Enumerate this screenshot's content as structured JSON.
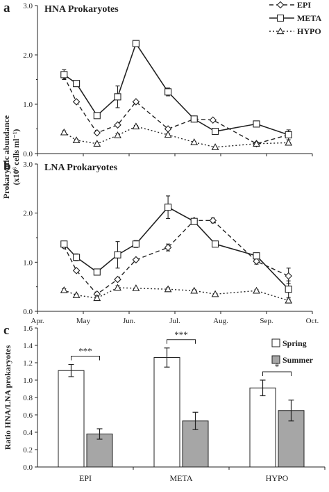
{
  "panel_letters": [
    "a",
    "b",
    "c"
  ],
  "shared_ylabel": {
    "line1": "Prokaryotic abundance",
    "line2": "(x10⁶ cells ml⁻¹)"
  },
  "time_axis": {
    "ticks": [
      "Apr.",
      "May",
      "Jun.",
      "Jul.",
      "Aug.",
      "Sep.",
      "Oct."
    ],
    "range_months": [
      0,
      6
    ]
  },
  "chart_data": [
    {
      "type": "line",
      "panel": "a",
      "title": "HNA Prokaryotes",
      "ylabel": "Prokaryotic abundance (x10⁶ cells ml⁻¹)",
      "ylim": [
        0,
        3
      ],
      "yticks": [
        "0.0",
        "1.0",
        "2.0",
        "3.0"
      ],
      "legend_position": "top-right",
      "series": [
        {
          "name": "EPI",
          "marker": "diamond",
          "dash": "dashed",
          "points": [
            [
              0.58,
              1.57,
              0
            ],
            [
              0.85,
              1.05,
              0
            ],
            [
              1.3,
              0.42,
              0
            ],
            [
              1.75,
              0.58,
              0
            ],
            [
              2.15,
              1.05,
              0
            ],
            [
              2.85,
              0.5,
              0
            ],
            [
              3.42,
              0.7,
              0
            ],
            [
              3.83,
              0.68,
              0
            ],
            [
              4.78,
              0.2,
              0
            ],
            [
              5.48,
              0.38,
              0
            ]
          ]
        },
        {
          "name": "META",
          "marker": "square",
          "dash": "solid",
          "points": [
            [
              0.58,
              1.6,
              0.1
            ],
            [
              0.85,
              1.42,
              0.05
            ],
            [
              1.3,
              0.77,
              0.03
            ],
            [
              1.75,
              1.15,
              0.22
            ],
            [
              2.15,
              2.23,
              0
            ],
            [
              2.85,
              1.25,
              0.08
            ],
            [
              3.42,
              0.7,
              0.04
            ],
            [
              3.88,
              0.45,
              0.02
            ],
            [
              4.78,
              0.6,
              0.04
            ],
            [
              5.48,
              0.38,
              0.1
            ]
          ]
        },
        {
          "name": "HYPO",
          "marker": "triangle",
          "dash": "dotted",
          "points": [
            [
              0.58,
              0.43,
              0.03
            ],
            [
              0.85,
              0.27,
              0.02
            ],
            [
              1.3,
              0.2,
              0.02
            ],
            [
              1.75,
              0.37,
              0.03
            ],
            [
              2.15,
              0.55,
              0.02
            ],
            [
              2.85,
              0.38,
              0.02
            ],
            [
              3.42,
              0.23,
              0.01
            ],
            [
              3.88,
              0.13,
              0.01
            ],
            [
              4.78,
              0.2,
              0.01
            ],
            [
              5.48,
              0.22,
              0.01
            ]
          ]
        }
      ]
    },
    {
      "type": "line",
      "panel": "b",
      "title": "LNA Prokaryotes",
      "ylabel": "Prokaryotic abundance (x10⁶ cells ml⁻¹)",
      "ylim": [
        0,
        3
      ],
      "yticks": [
        "0.0",
        "1.0",
        "2.0",
        "3.0"
      ],
      "series": [
        {
          "name": "EPI",
          "marker": "diamond",
          "dash": "dashed",
          "points": [
            [
              0.58,
              1.33,
              0.04
            ],
            [
              0.85,
              0.83,
              0.03
            ],
            [
              1.3,
              0.35,
              0.04
            ],
            [
              1.75,
              0.65,
              0.03
            ],
            [
              2.15,
              1.05,
              0.03
            ],
            [
              2.85,
              1.3,
              0.07
            ],
            [
              3.42,
              1.85,
              0
            ],
            [
              3.83,
              1.85,
              0.05
            ],
            [
              4.78,
              1.02,
              0.06
            ],
            [
              5.48,
              0.72,
              0.16
            ]
          ]
        },
        {
          "name": "META",
          "marker": "square",
          "dash": "solid",
          "points": [
            [
              0.58,
              1.37,
              0.04
            ],
            [
              0.85,
              1.1,
              0.07
            ],
            [
              1.3,
              0.8,
              0
            ],
            [
              1.75,
              1.15,
              0.27
            ],
            [
              2.15,
              1.37,
              0.07
            ],
            [
              2.85,
              2.12,
              0.23
            ],
            [
              3.42,
              1.83,
              0
            ],
            [
              3.88,
              1.37,
              0.04
            ],
            [
              4.78,
              1.13,
              0.05
            ],
            [
              5.48,
              0.45,
              0.17
            ]
          ]
        },
        {
          "name": "HYPO",
          "marker": "triangle",
          "dash": "dotted",
          "points": [
            [
              0.58,
              0.43,
              0.03
            ],
            [
              0.85,
              0.33,
              0.02
            ],
            [
              1.3,
              0.27,
              0.04
            ],
            [
              1.75,
              0.48,
              0.04
            ],
            [
              2.15,
              0.47,
              0
            ],
            [
              2.85,
              0.45,
              0.03
            ],
            [
              3.42,
              0.42,
              0.02
            ],
            [
              3.88,
              0.35,
              0.01
            ],
            [
              4.78,
              0.42,
              0.02
            ],
            [
              5.48,
              0.22,
              0.03
            ]
          ]
        }
      ]
    },
    {
      "type": "bar",
      "panel": "c",
      "ylabel": "Ratio HNA/LNA prokaryotes",
      "ylim": [
        0,
        1.6
      ],
      "yticks": [
        "0.0",
        "0.2",
        "0.4",
        "0.6",
        "0.8",
        "1.0",
        "1.2",
        "1.4",
        "1.6"
      ],
      "categories": [
        "EPI",
        "META",
        "HYPO"
      ],
      "legend_position": "top-right",
      "series": [
        {
          "name": "Spring",
          "color": "#ffffff",
          "values": [
            1.11,
            1.26,
            0.91
          ],
          "errors": [
            0.07,
            0.11,
            0.09
          ]
        },
        {
          "name": "Summer",
          "color": "#a6a6a6",
          "values": [
            0.38,
            0.53,
            0.65
          ],
          "errors": [
            0.06,
            0.1,
            0.12
          ]
        }
      ],
      "significance": [
        "***",
        "***",
        "*"
      ]
    }
  ]
}
